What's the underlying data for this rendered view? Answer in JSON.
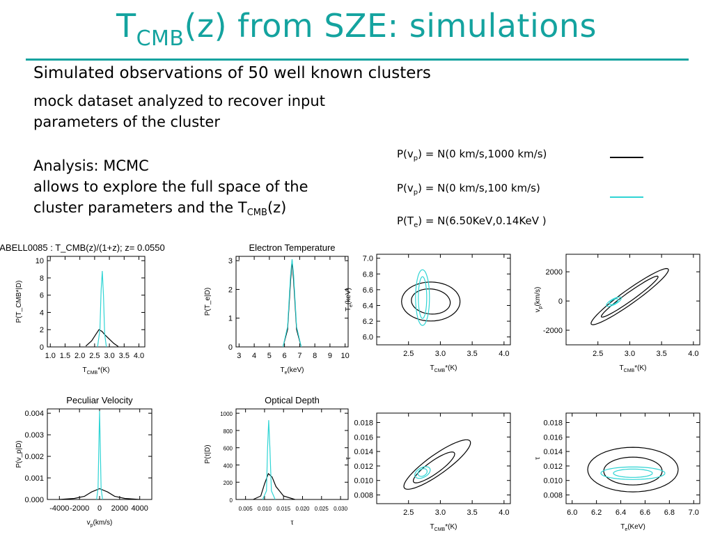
{
  "slide": {
    "title_main": "T",
    "title_sub": "CMB",
    "title_rest": "(z) from SZE: simulations",
    "heading": "Simulated observations of 50 well known clusters",
    "line1": "mock dataset analyzed to recover input",
    "line2": "parameters of the cluster",
    "line3": "Analysis: MCMC",
    "line4": "allows to explore the full space of the",
    "line5a": "cluster parameters and the T",
    "line5sub": "CMB",
    "line5b": "(z)",
    "colors": {
      "accent": "#14a39f",
      "cyan": "#2fd4d4",
      "black": "#000000"
    }
  },
  "legend": [
    {
      "pre": "P(v",
      "sub": "p",
      "post": ") = N(0 km/s,1000 km/s)",
      "color": "#000000"
    },
    {
      "pre": "P(v",
      "sub": "p",
      "post": ") = N(0 km/s,100 km/s)",
      "color": "#2fd4d4"
    },
    {
      "pre": "P(T",
      "sub": "e",
      "post": ") = N(6.50KeV,0.14KeV )",
      "color": ""
    }
  ],
  "chart_data": [
    {
      "type": "line",
      "title": "ABELL0085 : T_CMB(z)/(1+z); z= 0.0550",
      "xlabel": "T_CMB*(K)",
      "ylabel": "P(T_CMB*|D)",
      "xlim": [
        0.9,
        4.2
      ],
      "ylim": [
        0,
        10.5
      ],
      "xticks": [
        "1.0",
        "1.5",
        "2.0",
        "2.5",
        "3.0",
        "3.5",
        "4.0"
      ],
      "yticks": [
        "0",
        "2",
        "4",
        "6",
        "8",
        "10"
      ],
      "series": [
        {
          "color": "black",
          "x": [
            2.2,
            2.4,
            2.55,
            2.65,
            2.75,
            2.85,
            3.0,
            3.15,
            3.3
          ],
          "y": [
            0.1,
            0.7,
            1.5,
            2.0,
            1.8,
            1.4,
            0.9,
            0.4,
            0.05
          ]
        },
        {
          "color": "cyan",
          "x": [
            2.6,
            2.68,
            2.72,
            2.76,
            2.8,
            2.84,
            2.9
          ],
          "y": [
            0,
            2.0,
            6.5,
            8.8,
            6.0,
            1.5,
            0
          ]
        }
      ]
    },
    {
      "type": "line",
      "title": "Electron Temperature",
      "xlabel": "T_e(keV)",
      "ylabel": "P(T_e|D)",
      "xlim": [
        2.8,
        10.2
      ],
      "ylim": [
        0,
        3.15
      ],
      "xticks": [
        "3",
        "4",
        "5",
        "6",
        "7",
        "8",
        "9",
        "10"
      ],
      "yticks": [
        "0",
        "1",
        "2",
        "3"
      ],
      "series": [
        {
          "color": "black",
          "x": [
            5.9,
            6.2,
            6.4,
            6.5,
            6.6,
            6.8,
            7.1
          ],
          "y": [
            0,
            0.6,
            2.3,
            3.0,
            2.3,
            0.6,
            0
          ]
        },
        {
          "color": "cyan",
          "x": [
            5.9,
            6.2,
            6.4,
            6.5,
            6.6,
            6.8,
            7.1
          ],
          "y": [
            0,
            0.7,
            2.5,
            3.05,
            2.5,
            0.7,
            0
          ]
        }
      ]
    },
    {
      "type": "contour",
      "xlabel": "T_CMB*(K)",
      "ylabel": "T_e(keV)",
      "xlim": [
        2.0,
        4.1
      ],
      "ylim": [
        5.9,
        7.05
      ],
      "xticks": [
        "2.5",
        "3.0",
        "3.5",
        "4.0"
      ],
      "yticks": [
        "6.0",
        "6.2",
        "6.4",
        "6.6",
        "6.8",
        "7.0"
      ]
    },
    {
      "type": "contour",
      "xlabel": "T_CMB*(K)",
      "ylabel": "v_p(km/s)",
      "xlim": [
        2.0,
        4.1
      ],
      "ylim": [
        -3000,
        3200
      ],
      "xticks": [
        "2.5",
        "3.0",
        "3.5",
        "4.0"
      ],
      "yticks": [
        "-2000",
        "0",
        "2000"
      ]
    },
    {
      "type": "line",
      "title": "Peculiar Velocity",
      "xlabel": "v_p(km/s)",
      "ylabel": "P(v_p|D)",
      "xlim": [
        -5200,
        5200
      ],
      "ylim": [
        0,
        0.0042
      ],
      "xticks": [
        "-4000",
        "-2000",
        "0",
        "2000",
        "4000"
      ],
      "yticks": [
        "0.000",
        "0.001",
        "0.002",
        "0.003",
        "0.004"
      ],
      "series": [
        {
          "color": "black",
          "x": [
            -4000,
            -2500,
            -1500,
            -800,
            0,
            800,
            1500,
            2500,
            4000
          ],
          "y": [
            0,
            5e-05,
            0.00015,
            0.00035,
            0.0005,
            0.00035,
            0.00015,
            5e-05,
            0
          ]
        },
        {
          "color": "cyan",
          "x": [
            -300,
            -150,
            -50,
            0,
            50,
            150,
            300
          ],
          "y": [
            0,
            0.0005,
            0.003,
            0.0041,
            0.003,
            0.0005,
            0
          ]
        }
      ]
    },
    {
      "type": "line",
      "title": "Optical Depth",
      "xlabel": "τ",
      "ylabel": "P(τ|D)",
      "xlim": [
        0.0025,
        0.032
      ],
      "ylim": [
        0,
        1050
      ],
      "xticks": [
        "0.005",
        "0.010",
        "0.015",
        "0.020",
        "0.025",
        "0.030"
      ],
      "yticks": [
        "0",
        "200",
        "400",
        "600",
        "800",
        "1000"
      ],
      "series": [
        {
          "color": "black",
          "x": [
            0.007,
            0.009,
            0.01,
            0.011,
            0.012,
            0.013,
            0.015,
            0.018
          ],
          "y": [
            0,
            40,
            180,
            300,
            260,
            150,
            40,
            0
          ]
        },
        {
          "color": "cyan",
          "x": [
            0.0095,
            0.0105,
            0.0108,
            0.0111,
            0.0114,
            0.0118,
            0.0128
          ],
          "y": [
            0,
            100,
            600,
            920,
            600,
            100,
            0
          ]
        }
      ]
    },
    {
      "type": "contour",
      "xlabel": "T_CMB*(K)",
      "ylabel": "τ",
      "xlim": [
        2.0,
        4.1
      ],
      "ylim": [
        0.0068,
        0.0193
      ],
      "xticks": [
        "2.5",
        "3.0",
        "3.5",
        "4.0"
      ],
      "yticks": [
        "0.008",
        "0.010",
        "0.012",
        "0.014",
        "0.016",
        "0.018"
      ]
    },
    {
      "type": "contour",
      "xlabel": "T_e(KeV)",
      "ylabel": "τ",
      "xlim": [
        5.95,
        7.05
      ],
      "ylim": [
        0.0068,
        0.0193
      ],
      "xticks": [
        "6.0",
        "6.2",
        "6.4",
        "6.6",
        "6.8",
        "7.0"
      ],
      "yticks": [
        "0.008",
        "0.010",
        "0.012",
        "0.014",
        "0.016",
        "0.018"
      ]
    }
  ]
}
